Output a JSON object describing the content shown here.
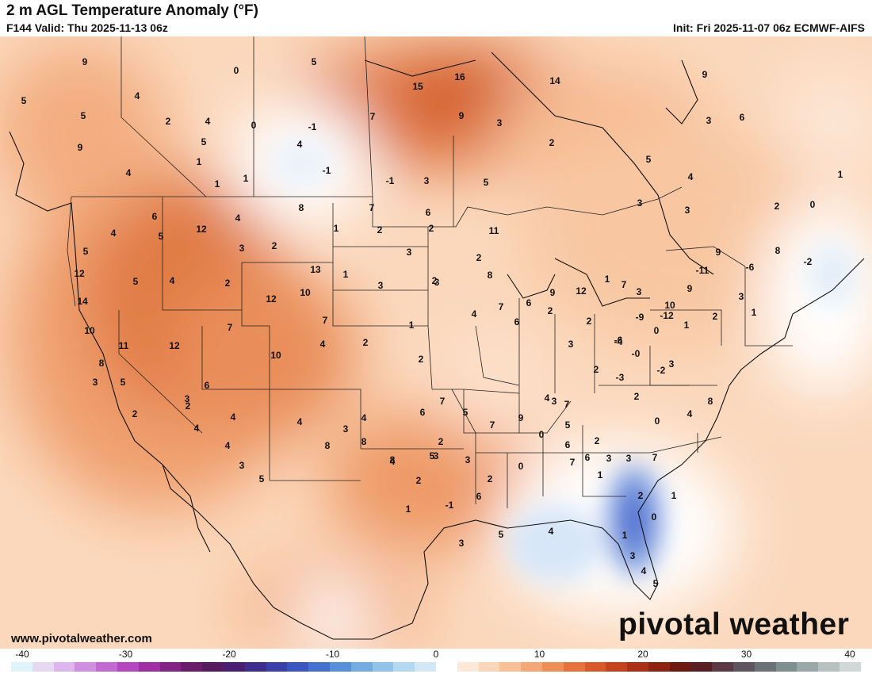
{
  "header": {
    "title": "2 m AGL Temperature Anomaly (°F)",
    "valid": "F144 Valid: Thu 2025-11-13 06z",
    "init": "Init: Fri 2025-11-07 06z ECMWF-AIFS"
  },
  "footer": {
    "url": "www.pivotalweather.com",
    "watermark": "pivotal weather"
  },
  "colorbar": {
    "ticks": [
      "-40",
      "-30",
      "-20",
      "-10",
      "0",
      "10",
      "20",
      "30",
      "40"
    ],
    "colors": [
      "#dff3fb",
      "#e7d8f2",
      "#dcb6ec",
      "#d08fe0",
      "#c36ad2",
      "#b548c1",
      "#a02fa6",
      "#842386",
      "#6a1b6c",
      "#561a5e",
      "#4a1f73",
      "#3f2d8d",
      "#3a40a8",
      "#3b56c0",
      "#4470cf",
      "#5890da",
      "#72acE3",
      "#92c3ea",
      "#b4d8f1",
      "#d3e8f6",
      "#ffffff",
      "#fde9d8",
      "#fbd6b8",
      "#f8c097",
      "#f4a877",
      "#ef8f58",
      "#e6733d",
      "#d85a2a",
      "#c4421d",
      "#ab3016",
      "#8f2312",
      "#6f1a10",
      "#5a1f22",
      "#5c3a45",
      "#5e5560",
      "#6a7278",
      "#7e8f8f",
      "#9aa9a7",
      "#b7c1bf",
      "#d2d8d7"
    ],
    "range": [
      -40,
      40
    ],
    "units": "°F"
  },
  "map": {
    "region": "CONUS / North America",
    "labels": [
      "9",
      "0",
      "5",
      "16",
      "14",
      "9",
      "5",
      "4",
      "5",
      "2",
      "4",
      "0",
      "-1",
      "7",
      "15",
      "9",
      "3",
      "9",
      "5",
      "4",
      "2",
      "3",
      "6",
      "1",
      "-1",
      "5",
      "4",
      "1",
      "1",
      "-1",
      "3",
      "5",
      "4",
      "1",
      "3",
      "3",
      "2",
      "0",
      "6",
      "4",
      "8",
      "7",
      "6",
      "4",
      "5",
      "12",
      "2",
      "3",
      "1",
      "2",
      "3",
      "2",
      "5",
      "11",
      "9",
      "8",
      "12",
      "5",
      "4",
      "2",
      "12",
      "10",
      "13",
      "7",
      "1",
      "3",
      "2",
      "2",
      "8",
      "14",
      "10",
      "11",
      "12",
      "7",
      "10",
      "4",
      "2",
      "1",
      "2",
      "3",
      "4",
      "7",
      "6",
      "6",
      "2",
      "9",
      "12",
      "1",
      "7",
      "3",
      "10",
      "9",
      "8",
      "5",
      "3",
      "2",
      "3",
      "6",
      "4",
      "4",
      "2",
      "4",
      "3",
      "5",
      "4",
      "8",
      "3",
      "4",
      "8",
      "8",
      "6",
      "7",
      "5",
      "7",
      "9",
      "3",
      "2",
      "3",
      "2",
      "-4",
      "-0",
      "0",
      "1",
      "2",
      "3",
      "1",
      "-2",
      "-6",
      "-11",
      "-12",
      "-9",
      "-6",
      "-3",
      "-2",
      "0",
      "2",
      "3",
      "4",
      "8",
      "4",
      "7",
      "6",
      "5",
      "3",
      "2",
      "6",
      "7",
      "0",
      "1",
      "3",
      "7",
      "1",
      "0",
      "2",
      "1",
      "3",
      "4",
      "5",
      "4",
      "5",
      "3",
      "6",
      "3",
      "2",
      "0",
      "-1",
      "1",
      "2",
      "3",
      "4",
      "2",
      "5"
    ]
  }
}
